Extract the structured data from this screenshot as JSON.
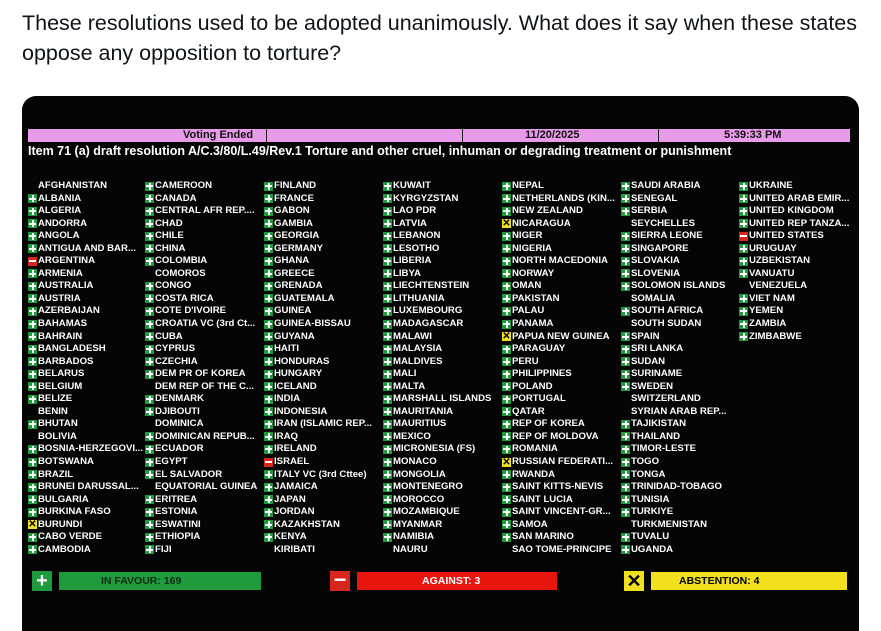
{
  "post": {
    "text": "These resolutions used to be adopted unanimously. What does it say when these states oppose any opposition to torture?"
  },
  "board": {
    "status": "Voting Ended",
    "date": "11/20/2025",
    "time": "5:39:33 PM",
    "item": "Item 71 (a) draft resolution A/C.3/80/L.49/Rev.1 Torture and other cruel, inhuman or degrading treatment or punishment",
    "colors": {
      "yes": "#1f9b3e",
      "no": "#d8261c",
      "abstain": "#f2e01e",
      "status_bar": "#e89be8"
    },
    "icons": {
      "yes": "plus-square-icon",
      "no": "minus-square-icon",
      "abstain": "x-square-icon"
    },
    "columns": [
      [
        {
          "n": "AFGHANISTAN",
          "v": ""
        },
        {
          "n": "ALBANIA",
          "v": "Y"
        },
        {
          "n": "ALGERIA",
          "v": "Y"
        },
        {
          "n": "ANDORRA",
          "v": "Y"
        },
        {
          "n": "ANGOLA",
          "v": "Y"
        },
        {
          "n": "ANTIGUA AND BAR...",
          "v": "Y"
        },
        {
          "n": "ARGENTINA",
          "v": "N"
        },
        {
          "n": "ARMENIA",
          "v": "Y"
        },
        {
          "n": "AUSTRALIA",
          "v": "Y"
        },
        {
          "n": "AUSTRIA",
          "v": "Y"
        },
        {
          "n": "AZERBAIJAN",
          "v": "Y"
        },
        {
          "n": "BAHAMAS",
          "v": "Y"
        },
        {
          "n": "BAHRAIN",
          "v": "Y"
        },
        {
          "n": "BANGLADESH",
          "v": "Y"
        },
        {
          "n": "BARBADOS",
          "v": "Y"
        },
        {
          "n": "BELARUS",
          "v": "Y"
        },
        {
          "n": "BELGIUM",
          "v": "Y"
        },
        {
          "n": "BELIZE",
          "v": "Y"
        },
        {
          "n": "BENIN",
          "v": ""
        },
        {
          "n": "BHUTAN",
          "v": "Y"
        },
        {
          "n": "BOLIVIA",
          "v": ""
        },
        {
          "n": "BOSNIA-HERZEGOVI...",
          "v": "Y"
        },
        {
          "n": "BOTSWANA",
          "v": "Y"
        },
        {
          "n": "BRAZIL",
          "v": "Y"
        },
        {
          "n": "BRUNEI DARUSSAL...",
          "v": "Y"
        },
        {
          "n": "BULGARIA",
          "v": "Y"
        },
        {
          "n": "BURKINA FASO",
          "v": "Y"
        },
        {
          "n": "BURUNDI",
          "v": "A"
        },
        {
          "n": "CABO VERDE",
          "v": "Y"
        },
        {
          "n": "CAMBODIA",
          "v": "Y"
        }
      ],
      [
        {
          "n": "CAMEROON",
          "v": "Y"
        },
        {
          "n": "CANADA",
          "v": "Y"
        },
        {
          "n": "CENTRAL AFR REP....",
          "v": "Y"
        },
        {
          "n": "CHAD",
          "v": "Y"
        },
        {
          "n": "CHILE",
          "v": "Y"
        },
        {
          "n": "CHINA",
          "v": "Y"
        },
        {
          "n": "COLOMBIA",
          "v": "Y"
        },
        {
          "n": "COMOROS",
          "v": ""
        },
        {
          "n": "CONGO",
          "v": "Y"
        },
        {
          "n": "COSTA RICA",
          "v": "Y"
        },
        {
          "n": "COTE D'IVOIRE",
          "v": "Y"
        },
        {
          "n": "CROATIA VC (3rd Ct...",
          "v": "Y"
        },
        {
          "n": "CUBA",
          "v": "Y"
        },
        {
          "n": "CYPRUS",
          "v": "Y"
        },
        {
          "n": "CZECHIA",
          "v": "Y"
        },
        {
          "n": "DEM PR OF KOREA",
          "v": "Y"
        },
        {
          "n": "DEM REP OF THE C...",
          "v": ""
        },
        {
          "n": "DENMARK",
          "v": "Y"
        },
        {
          "n": "DJIBOUTI",
          "v": "Y"
        },
        {
          "n": "DOMINICA",
          "v": ""
        },
        {
          "n": "DOMINICAN REPUB...",
          "v": "Y"
        },
        {
          "n": "ECUADOR",
          "v": "Y"
        },
        {
          "n": "EGYPT",
          "v": "Y"
        },
        {
          "n": "EL SALVADOR",
          "v": "Y"
        },
        {
          "n": "EQUATORIAL GUINEA",
          "v": ""
        },
        {
          "n": "ERITREA",
          "v": "Y"
        },
        {
          "n": "ESTONIA",
          "v": "Y"
        },
        {
          "n": "ESWATINI",
          "v": "Y"
        },
        {
          "n": "ETHIOPIA",
          "v": "Y"
        },
        {
          "n": "FIJI",
          "v": "Y"
        }
      ],
      [
        {
          "n": "FINLAND",
          "v": "Y"
        },
        {
          "n": "FRANCE",
          "v": "Y"
        },
        {
          "n": "GABON",
          "v": "Y"
        },
        {
          "n": "GAMBIA",
          "v": "Y"
        },
        {
          "n": "GEORGIA",
          "v": "Y"
        },
        {
          "n": "GERMANY",
          "v": "Y"
        },
        {
          "n": "GHANA",
          "v": "Y"
        },
        {
          "n": "GREECE",
          "v": "Y"
        },
        {
          "n": "GRENADA",
          "v": "Y"
        },
        {
          "n": "GUATEMALA",
          "v": "Y"
        },
        {
          "n": "GUINEA",
          "v": "Y"
        },
        {
          "n": "GUINEA-BISSAU",
          "v": "Y"
        },
        {
          "n": "GUYANA",
          "v": "Y"
        },
        {
          "n": "HAITI",
          "v": "Y"
        },
        {
          "n": "HONDURAS",
          "v": "Y"
        },
        {
          "n": "HUNGARY",
          "v": "Y"
        },
        {
          "n": "ICELAND",
          "v": "Y"
        },
        {
          "n": "INDIA",
          "v": "Y"
        },
        {
          "n": "INDONESIA",
          "v": "Y"
        },
        {
          "n": "IRAN (ISLAMIC REP...",
          "v": "Y"
        },
        {
          "n": "IRAQ",
          "v": "Y"
        },
        {
          "n": "IRELAND",
          "v": "Y"
        },
        {
          "n": "ISRAEL",
          "v": "N"
        },
        {
          "n": "ITALY VC (3rd Cttee)",
          "v": "Y"
        },
        {
          "n": "JAMAICA",
          "v": "Y"
        },
        {
          "n": "JAPAN",
          "v": "Y"
        },
        {
          "n": "JORDAN",
          "v": "Y"
        },
        {
          "n": "KAZAKHSTAN",
          "v": "Y"
        },
        {
          "n": "KENYA",
          "v": "Y"
        },
        {
          "n": "KIRIBATI",
          "v": ""
        }
      ],
      [
        {
          "n": "KUWAIT",
          "v": "Y"
        },
        {
          "n": "KYRGYZSTAN",
          "v": "Y"
        },
        {
          "n": "LAO PDR",
          "v": "Y"
        },
        {
          "n": "LATVIA",
          "v": "Y"
        },
        {
          "n": "LEBANON",
          "v": "Y"
        },
        {
          "n": "LESOTHO",
          "v": "Y"
        },
        {
          "n": "LIBERIA",
          "v": "Y"
        },
        {
          "n": "LIBYA",
          "v": "Y"
        },
        {
          "n": "LIECHTENSTEIN",
          "v": "Y"
        },
        {
          "n": "LITHUANIA",
          "v": "Y"
        },
        {
          "n": "LUXEMBOURG",
          "v": "Y"
        },
        {
          "n": "MADAGASCAR",
          "v": "Y"
        },
        {
          "n": "MALAWI",
          "v": "Y"
        },
        {
          "n": "MALAYSIA",
          "v": "Y"
        },
        {
          "n": "MALDIVES",
          "v": "Y"
        },
        {
          "n": "MALI",
          "v": "Y"
        },
        {
          "n": "MALTA",
          "v": "Y"
        },
        {
          "n": "MARSHALL ISLANDS",
          "v": "Y"
        },
        {
          "n": "MAURITANIA",
          "v": "Y"
        },
        {
          "n": "MAURITIUS",
          "v": "Y"
        },
        {
          "n": "MEXICO",
          "v": "Y"
        },
        {
          "n": "MICRONESIA (FS)",
          "v": "Y"
        },
        {
          "n": "MONACO",
          "v": "Y"
        },
        {
          "n": "MONGOLIA",
          "v": "Y"
        },
        {
          "n": "MONTENEGRO",
          "v": "Y"
        },
        {
          "n": "MOROCCO",
          "v": "Y"
        },
        {
          "n": "MOZAMBIQUE",
          "v": "Y"
        },
        {
          "n": "MYANMAR",
          "v": "Y"
        },
        {
          "n": "NAMIBIA",
          "v": "Y"
        },
        {
          "n": "NAURU",
          "v": ""
        }
      ],
      [
        {
          "n": "NEPAL",
          "v": "Y"
        },
        {
          "n": "NETHERLANDS (KIN...",
          "v": "Y"
        },
        {
          "n": "NEW ZEALAND",
          "v": "Y"
        },
        {
          "n": "NICARAGUA",
          "v": "A"
        },
        {
          "n": "NIGER",
          "v": "Y"
        },
        {
          "n": "NIGERIA",
          "v": "Y"
        },
        {
          "n": "NORTH MACEDONIA",
          "v": "Y"
        },
        {
          "n": "NORWAY",
          "v": "Y"
        },
        {
          "n": "OMAN",
          "v": "Y"
        },
        {
          "n": "PAKISTAN",
          "v": "Y"
        },
        {
          "n": "PALAU",
          "v": "Y"
        },
        {
          "n": "PANAMA",
          "v": "Y"
        },
        {
          "n": "PAPUA NEW GUINEA",
          "v": "A"
        },
        {
          "n": "PARAGUAY",
          "v": "Y"
        },
        {
          "n": "PERU",
          "v": "Y"
        },
        {
          "n": "PHILIPPINES",
          "v": "Y"
        },
        {
          "n": "POLAND",
          "v": "Y"
        },
        {
          "n": "PORTUGAL",
          "v": "Y"
        },
        {
          "n": "QATAR",
          "v": "Y"
        },
        {
          "n": "REP OF KOREA",
          "v": "Y"
        },
        {
          "n": "REP OF MOLDOVA",
          "v": "Y"
        },
        {
          "n": "ROMANIA",
          "v": "Y"
        },
        {
          "n": "RUSSIAN FEDERATI...",
          "v": "A"
        },
        {
          "n": "RWANDA",
          "v": "Y"
        },
        {
          "n": "SAINT KITTS-NEVIS",
          "v": "Y"
        },
        {
          "n": "SAINT LUCIA",
          "v": "Y"
        },
        {
          "n": "SAINT VINCENT-GR...",
          "v": "Y"
        },
        {
          "n": "SAMOA",
          "v": "Y"
        },
        {
          "n": "SAN MARINO",
          "v": "Y"
        },
        {
          "n": "SAO TOME-PRINCIPE",
          "v": ""
        }
      ],
      [
        {
          "n": "SAUDI ARABIA",
          "v": "Y"
        },
        {
          "n": "SENEGAL",
          "v": "Y"
        },
        {
          "n": "SERBIA",
          "v": "Y"
        },
        {
          "n": "SEYCHELLES",
          "v": ""
        },
        {
          "n": "SIERRA LEONE",
          "v": "Y"
        },
        {
          "n": "SINGAPORE",
          "v": "Y"
        },
        {
          "n": "SLOVAKIA",
          "v": "Y"
        },
        {
          "n": "SLOVENIA",
          "v": "Y"
        },
        {
          "n": "SOLOMON ISLANDS",
          "v": "Y"
        },
        {
          "n": "SOMALIA",
          "v": ""
        },
        {
          "n": "SOUTH AFRICA",
          "v": "Y"
        },
        {
          "n": "SOUTH SUDAN",
          "v": ""
        },
        {
          "n": "SPAIN",
          "v": "Y"
        },
        {
          "n": "SRI LANKA",
          "v": "Y"
        },
        {
          "n": "SUDAN",
          "v": "Y"
        },
        {
          "n": "SURINAME",
          "v": "Y"
        },
        {
          "n": "SWEDEN",
          "v": "Y"
        },
        {
          "n": "SWITZERLAND",
          "v": ""
        },
        {
          "n": "SYRIAN ARAB REP...",
          "v": ""
        },
        {
          "n": "TAJIKISTAN",
          "v": "Y"
        },
        {
          "n": "THAILAND",
          "v": "Y"
        },
        {
          "n": "TIMOR-LESTE",
          "v": "Y"
        },
        {
          "n": "TOGO",
          "v": "Y"
        },
        {
          "n": "TONGA",
          "v": "Y"
        },
        {
          "n": "TRINIDAD-TOBAGO",
          "v": "Y"
        },
        {
          "n": "TUNISIA",
          "v": "Y"
        },
        {
          "n": "TURKIYE",
          "v": "Y"
        },
        {
          "n": "TURKMENISTAN",
          "v": ""
        },
        {
          "n": "TUVALU",
          "v": "Y"
        },
        {
          "n": "UGANDA",
          "v": "Y"
        }
      ],
      [
        {
          "n": "UKRAINE",
          "v": "Y"
        },
        {
          "n": "UNITED ARAB EMIR...",
          "v": "Y"
        },
        {
          "n": "UNITED KINGDOM",
          "v": "Y"
        },
        {
          "n": "UNITED REP TANZA...",
          "v": "Y"
        },
        {
          "n": "UNITED STATES",
          "v": "N"
        },
        {
          "n": "URUGUAY",
          "v": "Y"
        },
        {
          "n": "UZBEKISTAN",
          "v": "Y"
        },
        {
          "n": "VANUATU",
          "v": "Y"
        },
        {
          "n": "VENEZUELA",
          "v": ""
        },
        {
          "n": "VIET NAM",
          "v": "Y"
        },
        {
          "n": "YEMEN",
          "v": "Y"
        },
        {
          "n": "ZAMBIA",
          "v": "Y"
        },
        {
          "n": "ZIMBABWE",
          "v": "Y"
        }
      ]
    ],
    "tally": {
      "favour": "IN FAVOUR: 169",
      "against": "AGAINST: 3",
      "abstention": "ABSTENTION: 4"
    }
  }
}
